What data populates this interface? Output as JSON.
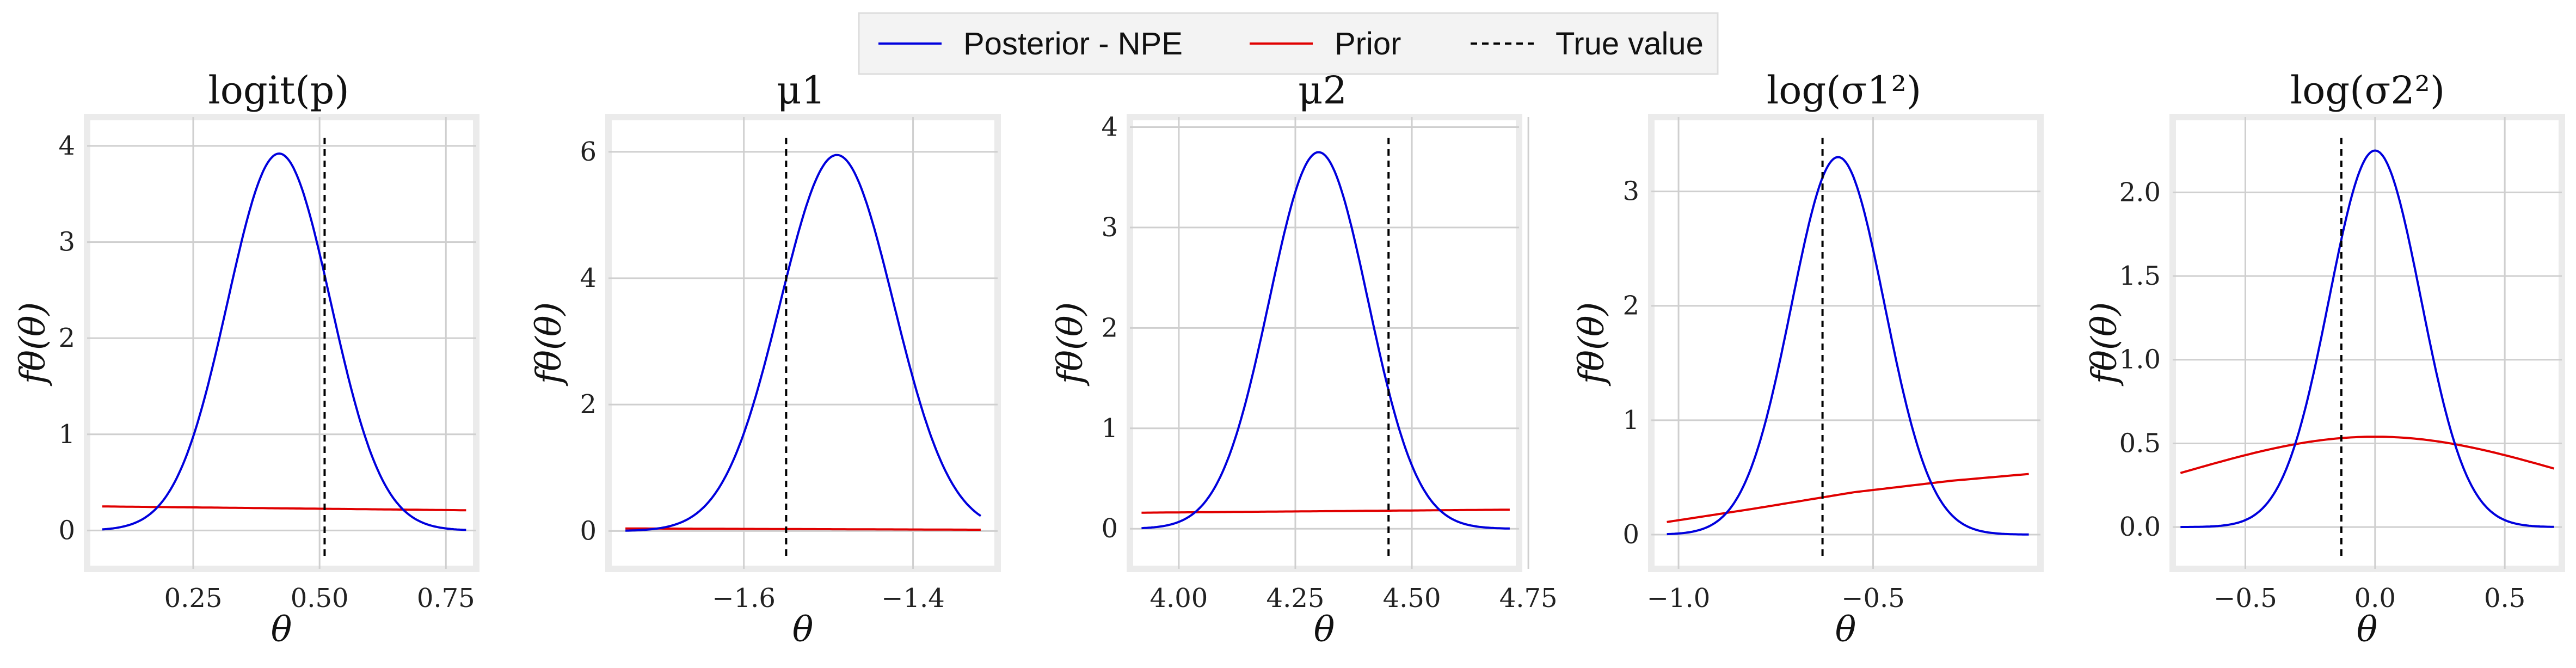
{
  "legend": {
    "entries": [
      {
        "label": "Posterior - NPE",
        "color": "#0000dd",
        "style": "solid"
      },
      {
        "label": "Prior",
        "color": "#e00000",
        "style": "solid"
      },
      {
        "label": "True value",
        "color": "#000000",
        "style": "dashed"
      }
    ],
    "placement": "top-center"
  },
  "chart_data": [
    {
      "type": "line",
      "title": "logit(p)",
      "xlabel": "θ",
      "ylabel": "fθ(θ)",
      "xlim": [
        0.04,
        0.81
      ],
      "ylim": [
        -0.4,
        4.3
      ],
      "xticks": [
        0.25,
        0.5,
        0.75
      ],
      "xtick_labels": [
        "0.25",
        "0.50",
        "0.75"
      ],
      "yticks": [
        0,
        1,
        2,
        3,
        4
      ],
      "ytick_labels": [
        "0",
        "1",
        "2",
        "3",
        "4"
      ],
      "true_value": 0.51,
      "posterior": {
        "mean": 0.42,
        "sd": 0.102,
        "peak": 3.92,
        "x_range": [
          0.07,
          0.79
        ]
      },
      "prior": {
        "x": [
          0.07,
          0.79
        ],
        "y": [
          0.25,
          0.21
        ]
      },
      "grid": true
    },
    {
      "type": "line",
      "title": "μ1",
      "xlabel": "θ",
      "ylabel": "fθ(θ)",
      "xlim": [
        -1.76,
        -1.3
      ],
      "ylim": [
        -0.6,
        6.55
      ],
      "xticks": [
        -1.6,
        -1.4
      ],
      "xtick_labels": [
        "−1.6",
        "−1.4"
      ],
      "yticks": [
        0,
        2,
        4,
        6
      ],
      "ytick_labels": [
        "0",
        "2",
        "4",
        "6"
      ],
      "true_value": -1.55,
      "posterior": {
        "mean": -1.49,
        "sd": 0.067,
        "peak": 5.95,
        "x_range": [
          -1.74,
          -1.32
        ]
      },
      "prior": {
        "x": [
          -1.74,
          -1.32
        ],
        "y": [
          0.04,
          0.02
        ]
      },
      "grid": true
    },
    {
      "type": "line",
      "title": "μ2",
      "xlabel": "θ",
      "ylabel": "fθ(θ)",
      "xlim": [
        3.895,
        4.73
      ],
      "ylim": [
        -0.4,
        4.1
      ],
      "xticks": [
        4.0,
        4.25,
        4.5,
        4.75
      ],
      "xtick_labels": [
        "4.00",
        "4.25",
        "4.50",
        "4.75"
      ],
      "yticks": [
        0,
        1,
        2,
        3,
        4
      ],
      "ytick_labels": [
        "0",
        "1",
        "2",
        "3",
        "4"
      ],
      "true_value": 4.45,
      "posterior": {
        "mean": 4.3,
        "sd": 0.106,
        "peak": 3.75,
        "x_range": [
          3.92,
          4.71
        ]
      },
      "prior": {
        "x": [
          3.92,
          4.71
        ],
        "y": [
          0.16,
          0.19
        ]
      },
      "grid": true
    },
    {
      "type": "line",
      "title": "log(σ1²)",
      "xlabel": "θ",
      "ylabel": "fθ(θ)",
      "xlim": [
        -1.07,
        -0.07
      ],
      "ylim": [
        -0.3,
        3.65
      ],
      "xticks": [
        -1.0,
        -0.5
      ],
      "xtick_labels": [
        "−1.0",
        "−0.5"
      ],
      "yticks": [
        0,
        1,
        2,
        3
      ],
      "ytick_labels": [
        "0",
        "1",
        "2",
        "3"
      ],
      "true_value": -0.63,
      "posterior": {
        "mean": -0.59,
        "sd": 0.12,
        "peak": 3.3,
        "x_range": [
          -1.03,
          -0.1
        ]
      },
      "prior": {
        "x": [
          -1.03,
          -0.8,
          -0.55,
          -0.3,
          -0.1
        ],
        "y": [
          0.11,
          0.23,
          0.37,
          0.47,
          0.53
        ]
      },
      "grid": true
    },
    {
      "type": "line",
      "title": "log(σ2²)",
      "xlabel": "θ",
      "ylabel": "fθ(θ)",
      "xlim": [
        -0.78,
        0.72
      ],
      "ylim": [
        -0.25,
        2.45
      ],
      "xticks": [
        -0.5,
        0,
        0.5
      ],
      "xtick_labels": [
        "−0.5",
        "0.0",
        "0.5"
      ],
      "yticks": [
        0,
        0.5,
        1.0,
        1.5,
        2.0
      ],
      "ytick_labels": [
        "0.0",
        "0.5",
        "1.0",
        "1.5",
        "2.0"
      ],
      "true_value": -0.13,
      "posterior": {
        "mean": 0.0,
        "sd": 0.177,
        "peak": 2.25,
        "x_range": [
          -0.75,
          0.69
        ]
      },
      "prior": {
        "type": "gaussian",
        "mean": 0.0,
        "sd": 0.74,
        "peak": 0.54,
        "x_range": [
          -0.75,
          0.69
        ]
      },
      "grid": true
    }
  ]
}
